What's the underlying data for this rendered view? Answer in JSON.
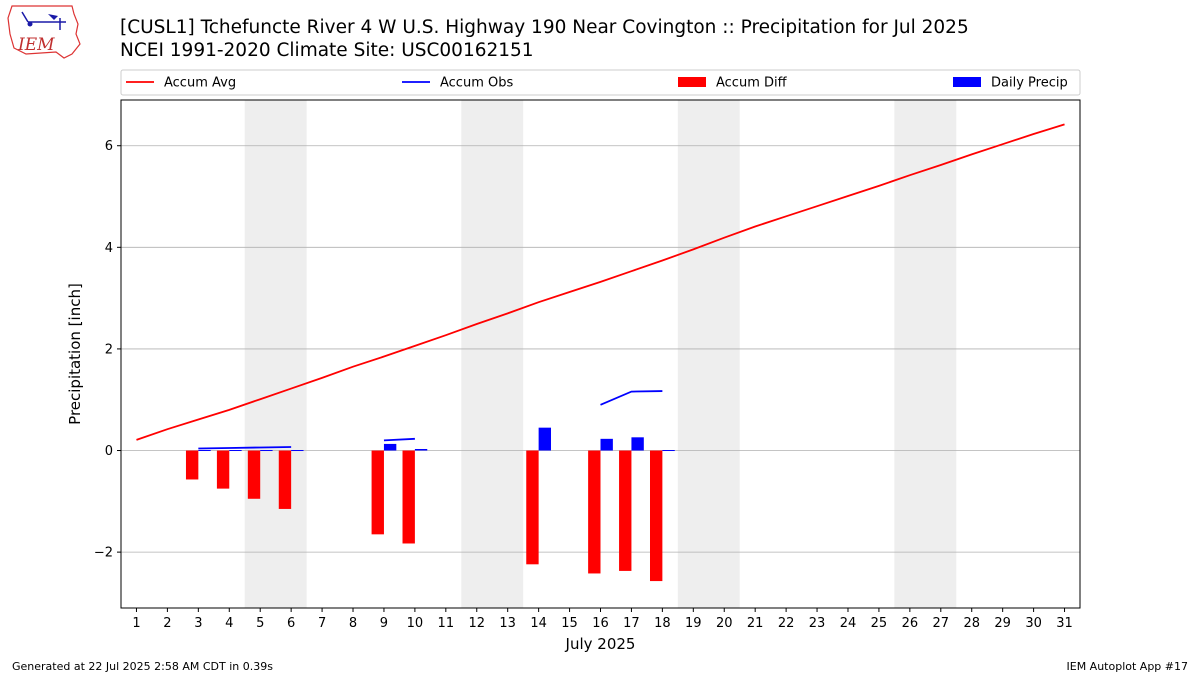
{
  "header": {
    "title_line1": "[CUSL1] Tchefuncte River 4 W U.S. Highway 190 Near Covington :: Precipitation for Jul 2025",
    "title_line2": "NCEI 1991-2020 Climate Site: USC00162151",
    "logo_text": "IEM"
  },
  "footer": {
    "generated": "Generated at 22 Jul 2025 2:58 AM CDT in 0.39s",
    "app": "IEM Autoplot App #17"
  },
  "colors": {
    "accum_avg": "#ff0000",
    "accum_obs": "#0000ff",
    "accum_diff": "#ff0000",
    "daily_precip": "#0000ff",
    "weekend_shade": "#eeeeee",
    "grid": "#b0b0b0"
  },
  "chart_data": {
    "type": "bar",
    "xlabel": "July 2025",
    "ylabel": "Precipitation [inch]",
    "xlim": [
      0.5,
      31.5
    ],
    "ylim": [
      -3.1,
      6.9
    ],
    "x_ticks": [
      "1",
      "2",
      "3",
      "4",
      "5",
      "6",
      "7",
      "8",
      "9",
      "10",
      "11",
      "12",
      "13",
      "14",
      "15",
      "16",
      "17",
      "18",
      "19",
      "20",
      "21",
      "22",
      "23",
      "24",
      "25",
      "26",
      "27",
      "28",
      "29",
      "30",
      "31"
    ],
    "y_ticks": [
      -2,
      0,
      2,
      4,
      6
    ],
    "y_tick_labels": [
      "−2",
      "0",
      "2",
      "4",
      "6"
    ],
    "grid": "horizontal",
    "legend_placement": "top, outside plot",
    "weekends": [
      [
        5,
        6
      ],
      [
        12,
        13
      ],
      [
        19,
        20
      ],
      [
        26,
        27
      ]
    ],
    "legend": [
      {
        "label": "Accum Avg",
        "kind": "line",
        "color": "#ff0000"
      },
      {
        "label": "Accum Obs",
        "kind": "line",
        "color": "#0000ff"
      },
      {
        "label": "Accum Diff",
        "kind": "bar",
        "color": "#ff0000"
      },
      {
        "label": "Daily Precip",
        "kind": "bar",
        "color": "#0000ff"
      }
    ],
    "series": [
      {
        "name": "Accum Avg",
        "kind": "line",
        "x": [
          1,
          2,
          3,
          4,
          5,
          6,
          7,
          8,
          9,
          10,
          11,
          12,
          13,
          14,
          15,
          16,
          17,
          18,
          19,
          20,
          21,
          22,
          23,
          24,
          25,
          26,
          27,
          28,
          29,
          30,
          31
        ],
        "values": [
          0.21,
          0.42,
          0.61,
          0.8,
          1.01,
          1.22,
          1.43,
          1.65,
          1.85,
          2.06,
          2.27,
          2.49,
          2.7,
          2.92,
          3.12,
          3.32,
          3.53,
          3.74,
          3.96,
          4.19,
          4.41,
          4.61,
          4.81,
          5.01,
          5.21,
          5.42,
          5.62,
          5.83,
          6.03,
          6.23,
          6.42
        ]
      },
      {
        "name": "Accum Obs",
        "kind": "line-segments",
        "segments": [
          {
            "x": [
              3,
              4,
              5,
              6
            ],
            "values": [
              0.04,
              0.05,
              0.06,
              0.07
            ]
          },
          {
            "x": [
              9,
              10
            ],
            "values": [
              0.2,
              0.23
            ]
          },
          {
            "x": [
              16,
              17,
              18
            ],
            "values": [
              0.9,
              1.16,
              1.17
            ]
          }
        ]
      },
      {
        "name": "Accum Diff",
        "kind": "bar",
        "x": [
          3,
          4,
          5,
          6,
          9,
          10,
          14,
          16,
          17,
          18
        ],
        "values": [
          -0.57,
          -0.75,
          -0.95,
          -1.15,
          -1.65,
          -1.83,
          -2.24,
          -2.42,
          -2.37,
          -2.57
        ]
      },
      {
        "name": "Daily Precip",
        "kind": "bar",
        "x": [
          3,
          4,
          5,
          6,
          9,
          10,
          14,
          16,
          17,
          18
        ],
        "values": [
          0.01,
          0.01,
          0.01,
          0.01,
          0.13,
          0.03,
          0.45,
          0.23,
          0.26,
          0.01
        ]
      }
    ]
  }
}
